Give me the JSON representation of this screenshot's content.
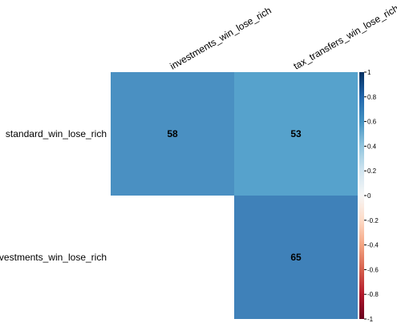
{
  "chart_data": {
    "type": "heatmap",
    "rows": [
      "standard_win_lose_rich",
      "investments_win_lose_rich"
    ],
    "columns": [
      "investments_win_lose_rich",
      "tax_transfers_win_lose_rich"
    ],
    "cells": [
      {
        "row": 0,
        "col": 0,
        "label": "58",
        "value": 0.58,
        "color": "#4a90c2"
      },
      {
        "row": 0,
        "col": 1,
        "label": "53",
        "value": 0.53,
        "color": "#56a2cc"
      },
      {
        "row": 1,
        "col": 1,
        "label": "65",
        "value": 0.65,
        "color": "#3f81b9"
      }
    ],
    "colorbar": {
      "range": [
        -1,
        1
      ],
      "ticks": [
        "1",
        "0.8",
        "0.6",
        "0.4",
        "0.2",
        "0",
        "-0.2",
        "-0.4",
        "-0.6",
        "-0.8",
        "-1"
      ],
      "stops": [
        "#053061",
        "#2166ac",
        "#4393c3",
        "#92c5de",
        "#d1e5f0",
        "#f7f7f7",
        "#fddbc7",
        "#f4a582",
        "#d6604d",
        "#b2182b",
        "#67001f"
      ]
    },
    "grid": false,
    "legend_position": "right"
  }
}
